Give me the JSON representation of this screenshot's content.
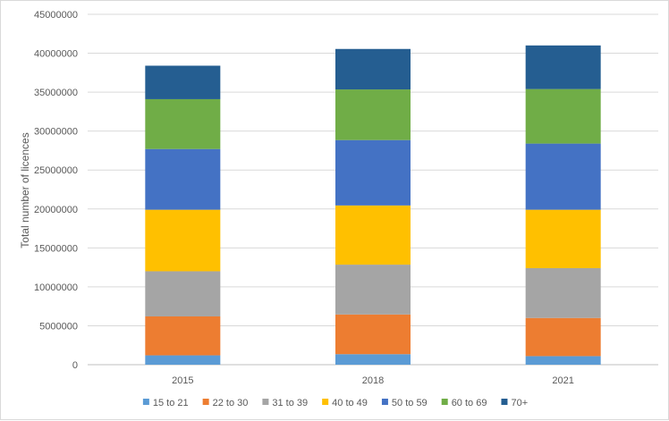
{
  "chart_data": {
    "type": "bar",
    "stacked": true,
    "title": "",
    "xlabel": "",
    "ylabel": "Total number of licences",
    "categories": [
      "2015",
      "2018",
      "2021"
    ],
    "ylim": [
      0,
      45000000
    ],
    "yticks": [
      0,
      5000000,
      10000000,
      15000000,
      20000000,
      25000000,
      30000000,
      35000000,
      40000000,
      45000000
    ],
    "grid": true,
    "legend_position": "bottom",
    "series": [
      {
        "name": "15 to 21",
        "color": "#5B9BD5",
        "values": [
          1200000,
          1350000,
          1100000
        ]
      },
      {
        "name": "22 to 30",
        "color": "#ED7D31",
        "values": [
          5000000,
          5100000,
          4900000
        ]
      },
      {
        "name": "31 to 39",
        "color": "#A5A5A5",
        "values": [
          5800000,
          6400000,
          6400000
        ]
      },
      {
        "name": "40 to 49",
        "color": "#FFC000",
        "values": [
          7900000,
          7600000,
          7500000
        ]
      },
      {
        "name": "50 to 59",
        "color": "#4472C4",
        "values": [
          7800000,
          8400000,
          8500000
        ]
      },
      {
        "name": "60 to 69",
        "color": "#70AD47",
        "values": [
          6400000,
          6500000,
          7000000
        ]
      },
      {
        "name": "70+",
        "color": "#255E91",
        "values": [
          4300000,
          5200000,
          5600000
        ]
      }
    ]
  }
}
